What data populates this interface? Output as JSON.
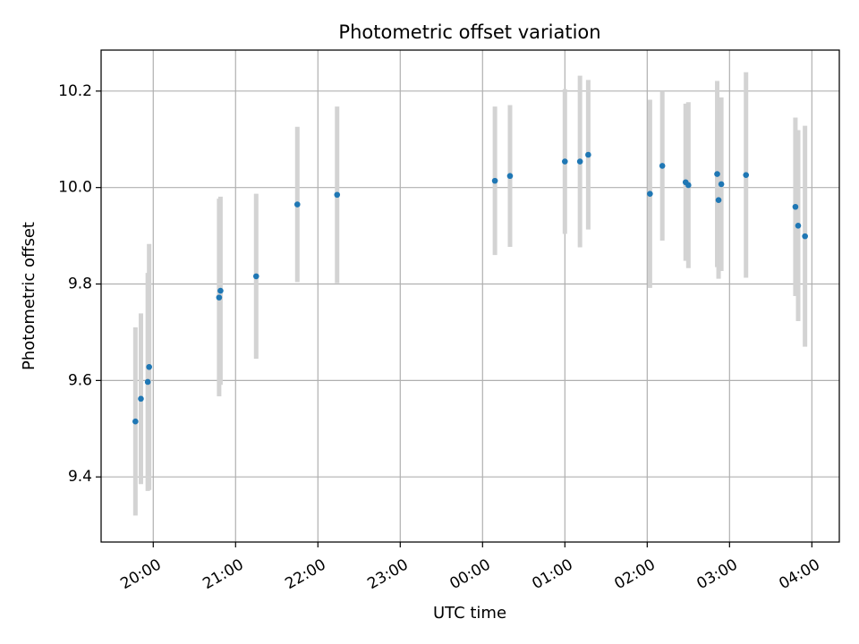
{
  "chart_data": {
    "type": "scatter",
    "title": "Photometric offset variation",
    "xlabel": "UTC time",
    "ylabel": "Photometric offset",
    "x_ticks": [
      "20:00",
      "21:00",
      "22:00",
      "23:00",
      "00:00",
      "01:00",
      "02:00",
      "03:00",
      "04:00"
    ],
    "y_ticks": [
      "9.4",
      "9.6",
      "9.8",
      "10.0",
      "10.2"
    ],
    "x_range": [
      "19:22",
      "04:20"
    ],
    "ylim": [
      9.265,
      10.285
    ],
    "grid": true,
    "colors": {
      "point": "#1f77b4",
      "errorbar": "#d3d3d3",
      "grid": "#b0b0b0"
    },
    "points": [
      {
        "t": "19:47",
        "y": 9.515,
        "err": 0.195
      },
      {
        "t": "19:51",
        "y": 9.562,
        "err": 0.177
      },
      {
        "t": "19:56",
        "y": 9.597,
        "err": 0.226
      },
      {
        "t": "19:57",
        "y": 9.628,
        "err": 0.255
      },
      {
        "t": "20:48",
        "y": 9.772,
        "err": 0.205
      },
      {
        "t": "20:49",
        "y": 9.786,
        "err": 0.195
      },
      {
        "t": "21:15",
        "y": 9.816,
        "err": 0.171
      },
      {
        "t": "21:45",
        "y": 9.965,
        "err": 0.161
      },
      {
        "t": "22:14",
        "y": 9.985,
        "err": 0.183
      },
      {
        "t": "00:09",
        "y": 10.014,
        "err": 0.154
      },
      {
        "t": "00:20",
        "y": 10.024,
        "err": 0.147
      },
      {
        "t": "01:00",
        "y": 10.054,
        "err": 0.15
      },
      {
        "t": "01:11",
        "y": 10.054,
        "err": 0.178
      },
      {
        "t": "01:17",
        "y": 10.068,
        "err": 0.155
      },
      {
        "t": "02:02",
        "y": 9.987,
        "err": 0.195
      },
      {
        "t": "02:11",
        "y": 10.045,
        "err": 0.155
      },
      {
        "t": "02:28",
        "y": 10.011,
        "err": 0.163
      },
      {
        "t": "02:30",
        "y": 10.005,
        "err": 0.172
      },
      {
        "t": "02:51",
        "y": 10.028,
        "err": 0.193
      },
      {
        "t": "02:52",
        "y": 9.974,
        "err": 0.163
      },
      {
        "t": "02:54",
        "y": 10.007,
        "err": 0.18
      },
      {
        "t": "03:12",
        "y": 10.026,
        "err": 0.213
      },
      {
        "t": "03:48",
        "y": 9.96,
        "err": 0.185
      },
      {
        "t": "03:50",
        "y": 9.921,
        "err": 0.198
      },
      {
        "t": "03:55",
        "y": 9.899,
        "err": 0.229
      }
    ]
  }
}
